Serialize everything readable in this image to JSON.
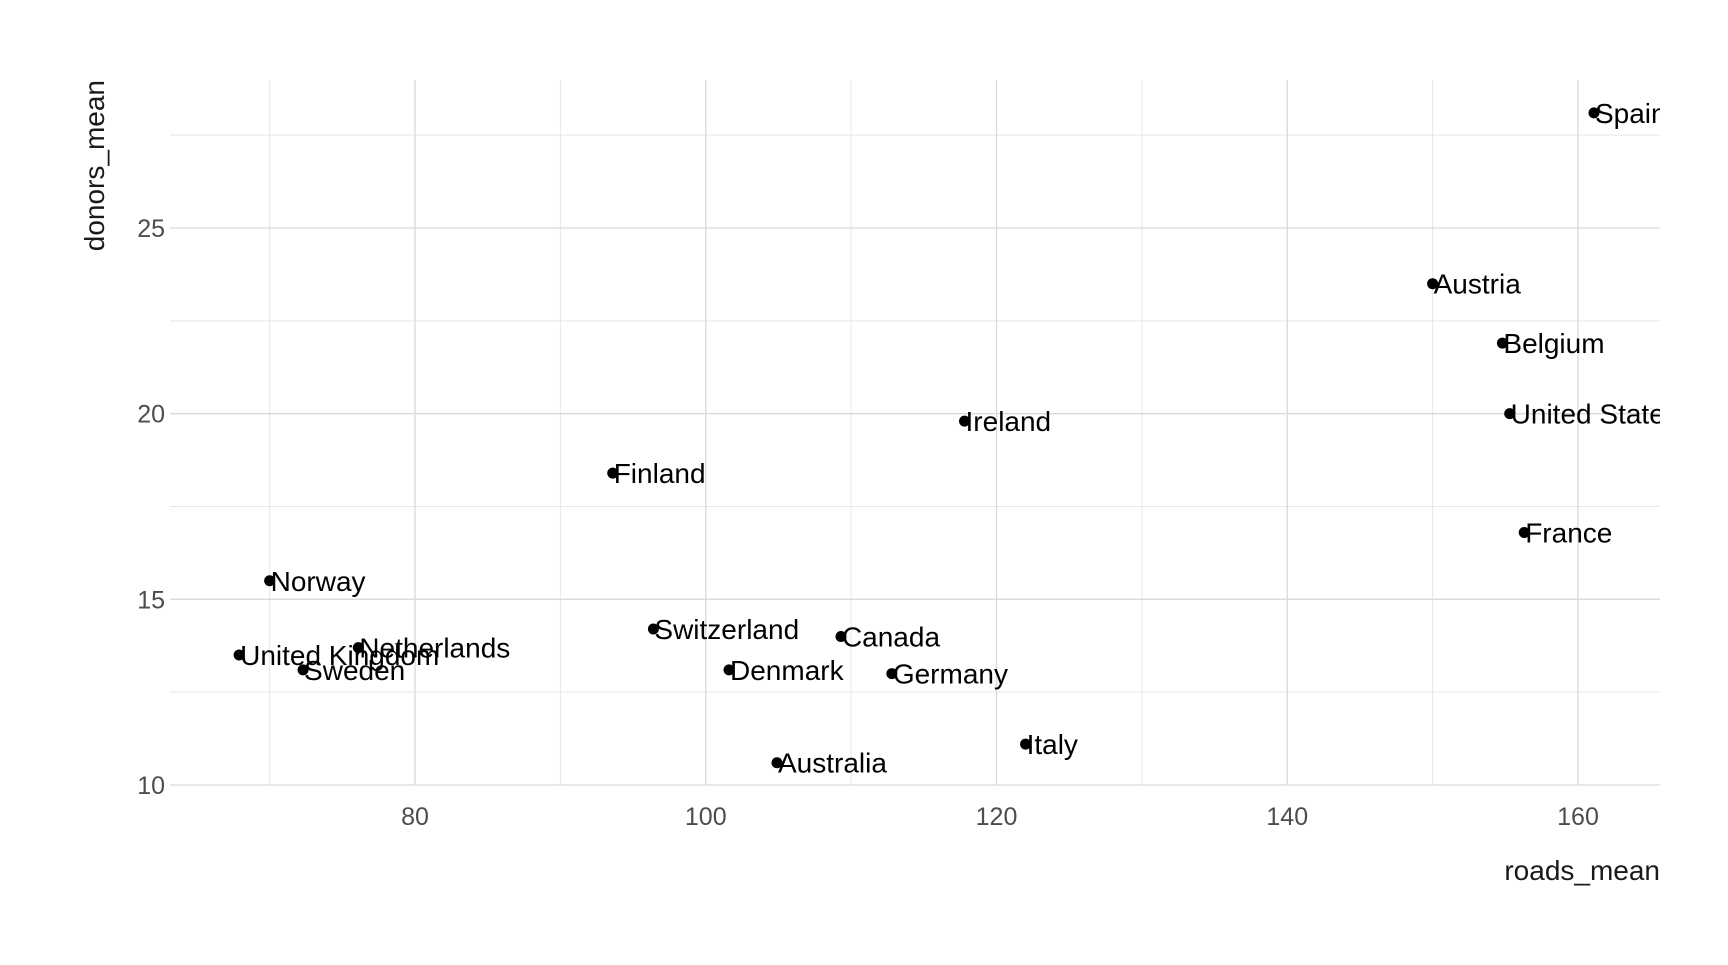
{
  "chart_data": {
    "type": "scatter",
    "xlabel": "roads_mean",
    "ylabel": "donors_mean",
    "xlim": [
      63,
      166
    ],
    "ylim": [
      10,
      28.5
    ],
    "xticks": [
      80,
      100,
      120,
      140,
      160
    ],
    "xticks_minor": [
      70,
      90,
      110,
      130,
      150
    ],
    "yticks": [
      10,
      15,
      20,
      25
    ],
    "yticks_minor": [
      12.5,
      17.5,
      22.5,
      27.5
    ],
    "grid": true,
    "theme": "minimal",
    "point_color": "#000000",
    "grid_color": "#d9d9d9",
    "points": [
      {
        "label": "Spain",
        "x": 161.1,
        "y": 28.1
      },
      {
        "label": "Austria",
        "x": 150.0,
        "y": 23.5
      },
      {
        "label": "Belgium",
        "x": 154.8,
        "y": 21.9
      },
      {
        "label": "United States",
        "x": 155.3,
        "y": 20.0
      },
      {
        "label": "France",
        "x": 156.3,
        "y": 16.8
      },
      {
        "label": "Ireland",
        "x": 117.8,
        "y": 19.8
      },
      {
        "label": "Finland",
        "x": 93.6,
        "y": 18.4
      },
      {
        "label": "Norway",
        "x": 70.0,
        "y": 15.5
      },
      {
        "label": "Switzerland",
        "x": 96.4,
        "y": 14.2
      },
      {
        "label": "Canada",
        "x": 109.3,
        "y": 14.0
      },
      {
        "label": "Netherlands",
        "x": 76.1,
        "y": 13.7
      },
      {
        "label": "United Kingdom",
        "x": 67.9,
        "y": 13.5
      },
      {
        "label": "Sweden",
        "x": 72.3,
        "y": 13.1
      },
      {
        "label": "Denmark",
        "x": 101.6,
        "y": 13.1
      },
      {
        "label": "Germany",
        "x": 112.8,
        "y": 13.0
      },
      {
        "label": "Italy",
        "x": 122.0,
        "y": 11.1
      },
      {
        "label": "Australia",
        "x": 104.9,
        "y": 10.6
      }
    ]
  }
}
